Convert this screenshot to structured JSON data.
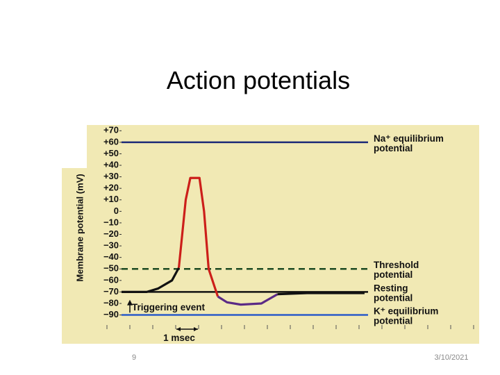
{
  "slide": {
    "title": "Action potentials",
    "page_number": "9",
    "date": "3/10/2021"
  },
  "chart_data": {
    "type": "line",
    "y_label": "Membrane potential (mV)",
    "ylim": [
      -115,
      75
    ],
    "yticks": [
      {
        "value": 70,
        "label": "+70"
      },
      {
        "value": 60,
        "label": "+60"
      },
      {
        "value": 50,
        "label": "+50"
      },
      {
        "value": 40,
        "label": "+40"
      },
      {
        "value": 30,
        "label": "+30"
      },
      {
        "value": 20,
        "label": "+20"
      },
      {
        "value": 10,
        "label": "+10"
      },
      0,
      {
        "value": -10,
        "label": "−10"
      },
      {
        "value": -20,
        "label": "−20"
      },
      {
        "value": -30,
        "label": "−30"
      },
      {
        "value": -40,
        "label": "−40"
      },
      {
        "value": -50,
        "label": "−50"
      },
      {
        "value": -60,
        "label": "−60"
      },
      {
        "value": -70,
        "label": "−70"
      },
      {
        "value": -80,
        "label": "−80"
      },
      {
        "value": -90,
        "label": "−90"
      }
    ],
    "xlim": [
      0,
      15.6
    ],
    "x": [
      0,
      1.1,
      1.6,
      2.2,
      2.5,
      2.8,
      3.0,
      3.4,
      3.6,
      3.8,
      4.2,
      4.6,
      5.2,
      6.1,
      6.8,
      8.1,
      10.6
    ],
    "series": [
      {
        "color": "#111111",
        "values": [
          -70,
          -70,
          -67,
          -60,
          -49,
          null,
          null,
          null,
          null,
          null,
          null,
          null,
          null,
          null,
          null,
          null,
          null
        ]
      },
      {
        "color": "#cc1f1a",
        "values": [
          null,
          null,
          null,
          null,
          -49,
          10,
          29,
          29,
          0,
          -50,
          -74,
          null,
          null,
          null,
          null,
          null,
          null
        ]
      },
      {
        "color": "#5b2a86",
        "values": [
          null,
          null,
          null,
          null,
          null,
          null,
          null,
          null,
          null,
          null,
          -74,
          -79,
          -81,
          -80,
          -72,
          null,
          null
        ]
      },
      {
        "color": "#111111",
        "values": [
          null,
          null,
          null,
          null,
          null,
          null,
          null,
          null,
          null,
          null,
          null,
          null,
          null,
          null,
          -72,
          -71,
          -71
        ]
      }
    ],
    "reference_lines": [
      {
        "value": 60,
        "label": [
          "Na⁺ equilibrium",
          "potential"
        ],
        "color": "#1c2a78",
        "dashed": false
      },
      {
        "value": -50,
        "label": [
          "Threshold",
          "potential"
        ],
        "color": "#1d4a22",
        "dashed": true
      },
      {
        "value": -70,
        "label": [
          "Resting",
          "potential"
        ],
        "color": "#111111",
        "dashed": false
      },
      {
        "value": -90,
        "label": [
          "K⁺ equilibrium",
          "potential"
        ],
        "color": "#2a5bc8",
        "dashed": false
      }
    ],
    "annotations": [
      "Triggering event",
      "1 msec"
    ]
  }
}
